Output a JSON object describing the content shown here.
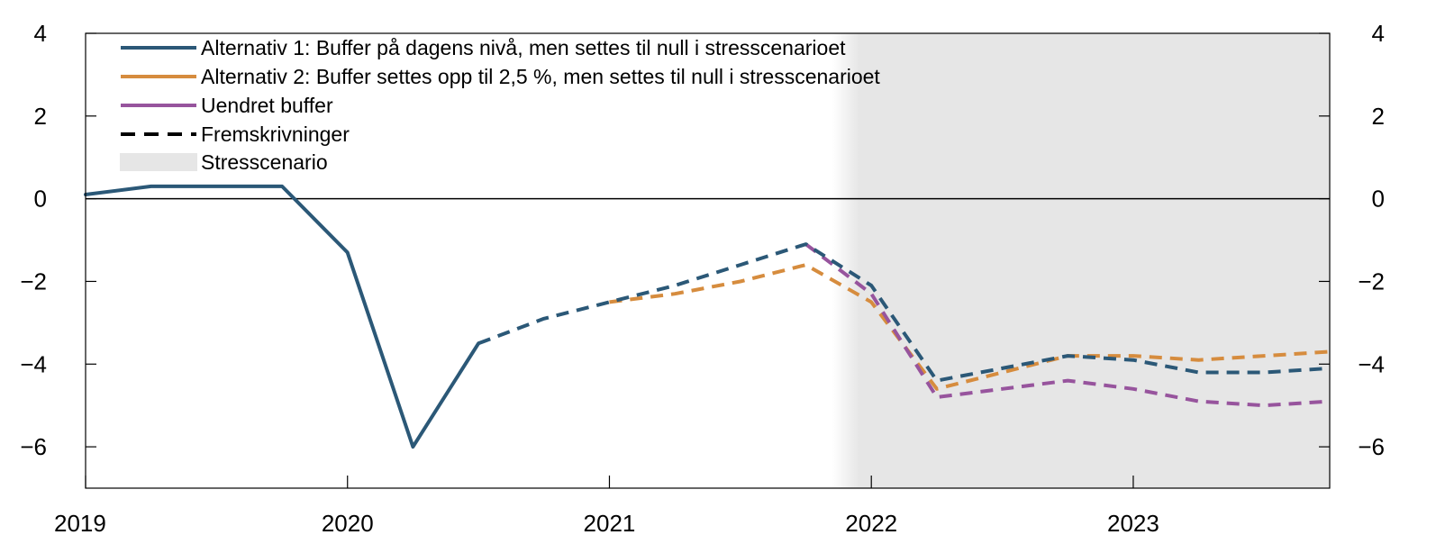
{
  "chart_data": {
    "type": "line",
    "title": "",
    "xlabel": "",
    "ylabel": "",
    "xlim": [
      2019.0,
      2023.75
    ],
    "ylim": [
      -7,
      4
    ],
    "yticks": [
      4,
      2,
      0,
      -2,
      -4,
      -6
    ],
    "ytick_labels": [
      "4",
      "2",
      "0",
      "−2",
      "−4",
      "−6"
    ],
    "xticks": [
      2019,
      2020,
      2021,
      2022,
      2023
    ],
    "xtick_labels": [
      "2019",
      "2020",
      "2021",
      "2022",
      "2023"
    ],
    "grid": false,
    "zero_line": true,
    "stress_scenario": {
      "x_start": 2021.85,
      "x_end": 2023.75,
      "label": "Stresscenario",
      "color": "#e6e6e6"
    },
    "legend": {
      "placement": "top-left"
    },
    "series": [
      {
        "name": "Alternativ 1: Buffer på dagens nivå, men settes til null i stresscenarioet",
        "color": "#2b5877",
        "historical": [
          [
            2019.0,
            0.1
          ],
          [
            2019.25,
            0.3
          ],
          [
            2019.5,
            0.3
          ],
          [
            2019.75,
            0.3
          ],
          [
            2020.0,
            -1.3
          ],
          [
            2020.25,
            -6.0
          ],
          [
            2020.5,
            -3.5
          ]
        ],
        "projection": [
          [
            2020.5,
            -3.5
          ],
          [
            2020.75,
            -2.9
          ],
          [
            2021.0,
            -2.5
          ],
          [
            2021.25,
            -2.1
          ],
          [
            2021.5,
            -1.6
          ],
          [
            2021.75,
            -1.1
          ],
          [
            2022.0,
            -2.1
          ],
          [
            2022.25,
            -4.4
          ],
          [
            2022.5,
            -4.1
          ],
          [
            2022.75,
            -3.8
          ],
          [
            2023.0,
            -3.9
          ],
          [
            2023.25,
            -4.2
          ],
          [
            2023.5,
            -4.2
          ],
          [
            2023.75,
            -4.1
          ]
        ]
      },
      {
        "name": "Alternativ 2: Buffer settes opp til 2,5 %, men settes til null i stresscenarioet",
        "color": "#d68c3e",
        "historical": [],
        "projection": [
          [
            2021.0,
            -2.5
          ],
          [
            2021.25,
            -2.3
          ],
          [
            2021.5,
            -2.0
          ],
          [
            2021.75,
            -1.6
          ],
          [
            2022.0,
            -2.5
          ],
          [
            2022.25,
            -4.6
          ],
          [
            2022.5,
            -4.2
          ],
          [
            2022.75,
            -3.8
          ],
          [
            2023.0,
            -3.8
          ],
          [
            2023.25,
            -3.9
          ],
          [
            2023.5,
            -3.8
          ],
          [
            2023.75,
            -3.7
          ]
        ]
      },
      {
        "name": "Uendret buffer",
        "color": "#97549d",
        "historical": [],
        "projection": [
          [
            2021.75,
            -1.1
          ],
          [
            2022.0,
            -2.3
          ],
          [
            2022.25,
            -4.8
          ],
          [
            2022.5,
            -4.6
          ],
          [
            2022.75,
            -4.4
          ],
          [
            2023.0,
            -4.6
          ],
          [
            2023.25,
            -4.9
          ],
          [
            2023.5,
            -5.0
          ],
          [
            2023.75,
            -4.9
          ]
        ]
      }
    ],
    "projection_legend_label": "Fremskrivninger"
  }
}
